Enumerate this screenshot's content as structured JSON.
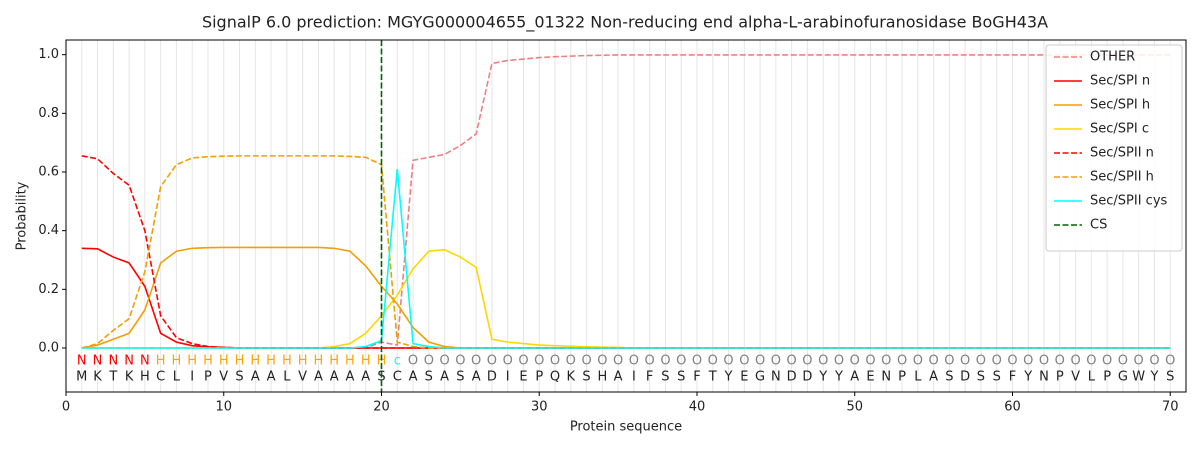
{
  "chart_data": {
    "type": "line",
    "title": "SignalP 6.0 prediction: MGYG000004655_01322 Non-reducing end alpha-L-arabinofuranosidase BoGH43A",
    "xlabel": "Protein sequence",
    "ylabel": "Probability",
    "xlim": [
      0,
      71
    ],
    "ylim": [
      -0.15,
      1.05
    ],
    "xticks": [
      0,
      10,
      20,
      30,
      40,
      50,
      60,
      70
    ],
    "yticks": [
      {
        "value": 0,
        "label": "0.0"
      },
      0.2,
      0.4,
      0.6,
      0.8,
      {
        "value": 1,
        "label": "1.0"
      }
    ],
    "legend": "upper right",
    "x": [
      1,
      2,
      3,
      4,
      5,
      6,
      7,
      8,
      9,
      10,
      11,
      12,
      13,
      14,
      15,
      16,
      17,
      18,
      19,
      20,
      21,
      22,
      23,
      24,
      25,
      26,
      27,
      28,
      29,
      30,
      31,
      32,
      33,
      34,
      35,
      36,
      37,
      38,
      39,
      40,
      41,
      42,
      43,
      44,
      45,
      46,
      47,
      48,
      49,
      50,
      51,
      52,
      53,
      54,
      55,
      56,
      57,
      58,
      59,
      60,
      61,
      62,
      63,
      64,
      65,
      66,
      67,
      68,
      69,
      70
    ],
    "series": [
      {
        "name": "OTHER",
        "color": "#f08080",
        "dashed": true,
        "values": [
          0,
          0,
          0,
          0,
          0,
          0,
          0,
          0,
          0,
          0,
          0,
          0,
          0,
          0,
          0,
          0,
          0,
          0,
          0,
          0.02,
          0.01,
          0.64,
          0.65,
          0.66,
          0.69,
          0.73,
          0.97,
          0.98,
          0.985,
          0.99,
          0.993,
          0.995,
          0.997,
          0.998,
          0.999,
          0.999,
          0.999,
          0.999,
          0.999,
          0.999,
          0.999,
          0.999,
          0.999,
          0.999,
          0.999,
          0.999,
          0.999,
          0.999,
          0.999,
          0.999,
          0.999,
          0.999,
          0.999,
          0.999,
          0.999,
          0.999,
          0.999,
          0.999,
          0.999,
          0.999,
          0.999,
          0.999,
          0.999,
          0.999,
          0.999,
          0.999,
          0.999,
          0.999,
          0.999,
          0.999
        ]
      },
      {
        "name": "Sec/SPI n",
        "color": "#ff0000",
        "dashed": false,
        "values": [
          0.34,
          0.338,
          0.31,
          0.29,
          0.21,
          0.05,
          0.02,
          0.008,
          0.004,
          0.002,
          0,
          0,
          0,
          0,
          0,
          0,
          0,
          0,
          0,
          0,
          0,
          0,
          0,
          0,
          0,
          0,
          0,
          0,
          0,
          0,
          0,
          0,
          0,
          0,
          0,
          0,
          0,
          0,
          0,
          0,
          0,
          0,
          0,
          0,
          0,
          0,
          0,
          0,
          0,
          0,
          0,
          0,
          0,
          0,
          0,
          0,
          0,
          0,
          0,
          0,
          0,
          0,
          0,
          0,
          0,
          0,
          0,
          0,
          0,
          0
        ]
      },
      {
        "name": "Sec/SPI h",
        "color": "#f0a000",
        "dashed": false,
        "values": [
          0,
          0.01,
          0.03,
          0.05,
          0.13,
          0.29,
          0.33,
          0.34,
          0.342,
          0.343,
          0.343,
          0.343,
          0.343,
          0.343,
          0.343,
          0.343,
          0.34,
          0.33,
          0.28,
          0.21,
          0.15,
          0.07,
          0.02,
          0.005,
          0,
          0,
          0,
          0,
          0,
          0,
          0,
          0,
          0,
          0,
          0,
          0,
          0,
          0,
          0,
          0,
          0,
          0,
          0,
          0,
          0,
          0,
          0,
          0,
          0,
          0,
          0,
          0,
          0,
          0,
          0,
          0,
          0,
          0,
          0,
          0,
          0,
          0,
          0,
          0,
          0,
          0,
          0,
          0,
          0,
          0
        ]
      },
      {
        "name": "Sec/SPI c",
        "color": "#ffd700",
        "dashed": false,
        "values": [
          0,
          0,
          0,
          0,
          0,
          0,
          0,
          0,
          0,
          0,
          0,
          0,
          0,
          0,
          0,
          0,
          0.005,
          0.015,
          0.05,
          0.11,
          0.18,
          0.27,
          0.33,
          0.335,
          0.31,
          0.275,
          0.03,
          0.02,
          0.015,
          0.01,
          0.008,
          0.006,
          0.004,
          0.003,
          0.002,
          0,
          0,
          0,
          0,
          0,
          0,
          0,
          0,
          0,
          0,
          0,
          0,
          0,
          0,
          0,
          0,
          0,
          0,
          0,
          0,
          0,
          0,
          0,
          0,
          0,
          0,
          0,
          0,
          0,
          0,
          0,
          0,
          0,
          0,
          0
        ]
      },
      {
        "name": "Sec/SPII n",
        "color": "#ff0000",
        "dashed": true,
        "values": [
          0.655,
          0.645,
          0.595,
          0.555,
          0.4,
          0.11,
          0.035,
          0.015,
          0.005,
          0.002,
          0,
          0,
          0,
          0,
          0,
          0,
          0,
          0,
          0,
          0,
          0,
          0,
          0,
          0,
          0,
          0,
          0,
          0,
          0,
          0,
          0,
          0,
          0,
          0,
          0,
          0,
          0,
          0,
          0,
          0,
          0,
          0,
          0,
          0,
          0,
          0,
          0,
          0,
          0,
          0,
          0,
          0,
          0,
          0,
          0,
          0,
          0,
          0,
          0,
          0,
          0,
          0,
          0,
          0,
          0,
          0,
          0,
          0,
          0,
          0
        ]
      },
      {
        "name": "Sec/SPII h",
        "color": "#f0a000",
        "dashed": true,
        "values": [
          0,
          0.015,
          0.06,
          0.1,
          0.26,
          0.55,
          0.625,
          0.648,
          0.652,
          0.654,
          0.655,
          0.655,
          0.655,
          0.655,
          0.655,
          0.655,
          0.655,
          0.653,
          0.65,
          0.625,
          0.02,
          0.005,
          0,
          0,
          0,
          0,
          0,
          0,
          0,
          0,
          0,
          0,
          0,
          0,
          0,
          0,
          0,
          0,
          0,
          0,
          0,
          0,
          0,
          0,
          0,
          0,
          0,
          0,
          0,
          0,
          0,
          0,
          0,
          0,
          0,
          0,
          0,
          0,
          0,
          0,
          0,
          0,
          0,
          0,
          0,
          0,
          0,
          0,
          0,
          0
        ]
      },
      {
        "name": "Sec/SPII cys",
        "color": "#00ffff",
        "dashed": false,
        "values": [
          0,
          0,
          0,
          0,
          0,
          0,
          0,
          0,
          0,
          0,
          0,
          0,
          0,
          0,
          0,
          0,
          0,
          0,
          0.005,
          0.025,
          0.61,
          0.015,
          0.005,
          0,
          0,
          0,
          0,
          0,
          0,
          0,
          0,
          0,
          0,
          0,
          0,
          0,
          0,
          0,
          0,
          0,
          0,
          0,
          0,
          0,
          0,
          0,
          0,
          0,
          0,
          0,
          0,
          0,
          0,
          0,
          0,
          0,
          0,
          0,
          0,
          0,
          0,
          0,
          0,
          0,
          0,
          0,
          0,
          0,
          0,
          0
        ]
      }
    ],
    "cs": {
      "name": "CS",
      "x": 20,
      "color": "#006400"
    },
    "labels": [
      "N",
      "N",
      "N",
      "N",
      "N",
      "H",
      "H",
      "H",
      "H",
      "H",
      "H",
      "H",
      "H",
      "H",
      "H",
      "H",
      "H",
      "H",
      "H",
      "H",
      "c",
      "O",
      "O",
      "O",
      "O",
      "O",
      "O",
      "O",
      "O",
      "O",
      "O",
      "O",
      "O",
      "O",
      "O",
      "O",
      "O",
      "O",
      "O",
      "O",
      "O",
      "O",
      "O",
      "O",
      "O",
      "O",
      "O",
      "O",
      "O",
      "O",
      "O",
      "O",
      "O",
      "O",
      "O",
      "O",
      "O",
      "O",
      "O",
      "O",
      "O",
      "O",
      "O",
      "O",
      "O",
      "O",
      "O",
      "O",
      "O",
      "O"
    ],
    "label_colors": {
      "N": "#ff0000",
      "H": "#ffa500",
      "c": "#00ffff",
      "O": "#808080"
    },
    "sequence": [
      "M",
      "K",
      "T",
      "K",
      "H",
      "C",
      "L",
      "I",
      "P",
      "V",
      "S",
      "A",
      "A",
      "L",
      "V",
      "A",
      "A",
      "A",
      "A",
      "S",
      "C",
      "A",
      "S",
      "A",
      "S",
      "A",
      "D",
      "I",
      "E",
      "P",
      "Q",
      "K",
      "S",
      "H",
      "A",
      "I",
      "F",
      "S",
      "S",
      "F",
      "T",
      "Y",
      "E",
      "G",
      "N",
      "D",
      "D",
      "Y",
      "Y",
      "A",
      "E",
      "N",
      "P",
      "L",
      "A",
      "S",
      "D",
      "S",
      "S",
      "F",
      "Y",
      "N",
      "P",
      "V",
      "L",
      "P",
      "G",
      "W",
      "Y",
      "S"
    ]
  }
}
